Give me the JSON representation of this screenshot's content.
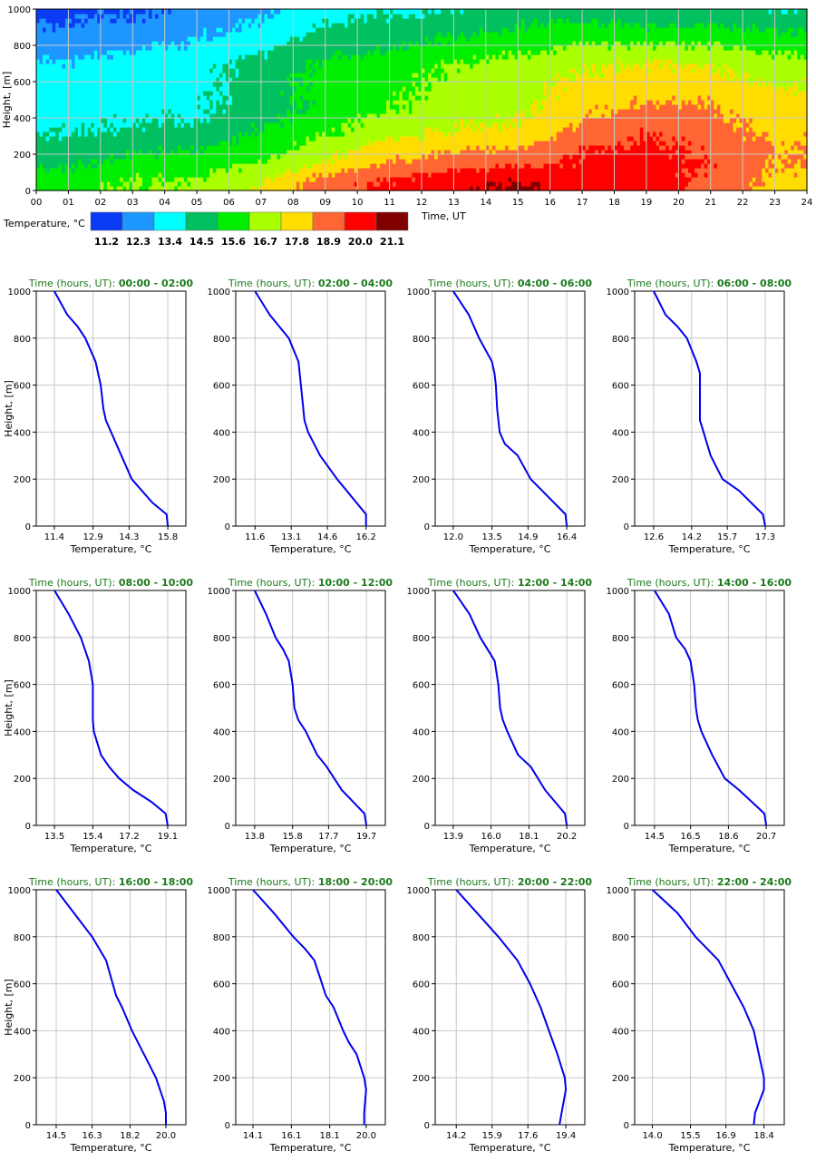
{
  "colors": {
    "profile_line": "#0000ee",
    "title_green": "#1a7a1a",
    "scale": [
      "#0a3cf5",
      "#1e96ff",
      "#00ffff",
      "#00c060",
      "#00ee00",
      "#aaff00",
      "#ffdd00",
      "#ff6633",
      "#ff0000",
      "#800000"
    ]
  },
  "chart_data": [
    {
      "type": "heatmap",
      "xlabel": "Time, UT",
      "ylabel": "Height, [m]",
      "x_ticks": [
        "00",
        "01",
        "02",
        "03",
        "04",
        "05",
        "06",
        "07",
        "08",
        "09",
        "10",
        "11",
        "12",
        "13",
        "14",
        "15",
        "16",
        "17",
        "18",
        "19",
        "20",
        "21",
        "22",
        "23",
        "24"
      ],
      "y_ticks": [
        "0",
        "200",
        "400",
        "600",
        "800",
        "1000"
      ],
      "xlim": [
        0,
        24
      ],
      "ylim": [
        0,
        1000
      ],
      "colorbar_label": "Temperature, °C",
      "colorbar_values": [
        "11.2",
        "12.3",
        "13.4",
        "14.5",
        "15.6",
        "16.7",
        "17.8",
        "18.9",
        "20.0",
        "21.1"
      ],
      "temperature_anchors": [
        {
          "time": 1,
          "heights": [
            0,
            50,
            150,
            300,
            450,
            600,
            700,
            800,
            1000
          ],
          "temps": [
            15.8,
            15.75,
            14.9,
            14.0,
            13.4,
            13.3,
            13.0,
            12.3,
            11.4
          ]
        },
        {
          "time": 3,
          "heights": [
            0,
            50,
            150,
            300,
            450,
            600,
            700,
            800,
            1000
          ],
          "temps": [
            16.2,
            16.2,
            15.4,
            14.3,
            13.65,
            13.6,
            13.4,
            12.6,
            11.6
          ]
        },
        {
          "time": 5,
          "heights": [
            0,
            50,
            150,
            300,
            400,
            600,
            700,
            800,
            1000
          ],
          "temps": [
            16.4,
            16.35,
            15.6,
            14.5,
            13.8,
            13.65,
            13.5,
            13.0,
            12.0
          ]
        },
        {
          "time": 7,
          "heights": [
            0,
            50,
            150,
            300,
            450,
            600,
            700,
            800,
            1000
          ],
          "temps": [
            17.3,
            17.2,
            16.2,
            15.2,
            14.55,
            14.55,
            14.4,
            13.6,
            12.6
          ]
        },
        {
          "time": 9,
          "heights": [
            0,
            50,
            150,
            300,
            450,
            600,
            700,
            800,
            1000
          ],
          "temps": [
            19.1,
            19.0,
            17.4,
            16.2,
            15.4,
            15.4,
            15.2,
            14.6,
            13.5
          ]
        },
        {
          "time": 11,
          "heights": [
            0,
            50,
            150,
            300,
            450,
            600,
            700,
            800,
            1000
          ],
          "temps": [
            19.7,
            19.6,
            18.4,
            17.1,
            16.1,
            15.8,
            15.6,
            14.9,
            13.8
          ]
        },
        {
          "time": 13,
          "heights": [
            0,
            50,
            150,
            300,
            450,
            600,
            700,
            800,
            1000
          ],
          "temps": [
            20.2,
            20.1,
            19.0,
            17.5,
            16.65,
            16.4,
            16.2,
            15.4,
            13.9
          ]
        },
        {
          "time": 15,
          "heights": [
            0,
            50,
            150,
            300,
            450,
            600,
            700,
            800,
            1000
          ],
          "temps": [
            20.7,
            20.6,
            19.2,
            17.7,
            16.9,
            16.7,
            16.5,
            15.7,
            14.5
          ]
        },
        {
          "time": 17,
          "heights": [
            0,
            50,
            200,
            400,
            550,
            700,
            800,
            1000
          ],
          "temps": [
            20.0,
            20.0,
            19.5,
            18.3,
            17.7,
            17.0,
            16.3,
            14.5
          ]
        },
        {
          "time": 19,
          "heights": [
            0,
            50,
            150,
            300,
            500,
            700,
            800,
            1000
          ],
          "temps": [
            19.9,
            19.9,
            20.0,
            19.5,
            18.3,
            17.3,
            16.2,
            14.1
          ]
        },
        {
          "time": 21,
          "heights": [
            0,
            50,
            150,
            300,
            500,
            700,
            800,
            1000
          ],
          "temps": [
            19.1,
            19.2,
            19.4,
            19.0,
            18.2,
            17.1,
            16.2,
            14.2
          ]
        },
        {
          "time": 23,
          "heights": [
            0,
            50,
            150,
            250,
            500,
            700,
            800,
            1000
          ],
          "temps": [
            18.0,
            18.05,
            18.4,
            18.3,
            17.6,
            16.6,
            15.7,
            14.0
          ]
        }
      ]
    },
    {
      "type": "line",
      "title_label": "Time (hours, UT):",
      "title_range": "00:00 - 02:00",
      "xlabel": "Temperature, °C",
      "ylabel": "Height, [m]",
      "xticks": [
        11.4,
        12.9,
        14.3,
        15.8
      ],
      "xlim": [
        10.7,
        16.5
      ],
      "ylim": [
        0,
        1000
      ],
      "x": [
        15.8,
        15.75,
        15.2,
        14.4,
        14.0,
        13.6,
        13.4,
        13.3,
        13.2,
        13.0,
        12.6,
        12.3,
        11.9,
        11.4
      ],
      "y": [
        0,
        50,
        100,
        200,
        300,
        400,
        450,
        500,
        600,
        700,
        800,
        850,
        900,
        1000
      ]
    },
    {
      "type": "line",
      "title_label": "Time (hours, UT):",
      "title_range": "02:00 - 04:00",
      "xlabel": "Temperature, °C",
      "ylabel": "Height, [m]",
      "xticks": [
        11.6,
        13.1,
        14.6,
        16.2
      ],
      "xlim": [
        10.8,
        17.0
      ],
      "ylim": [
        0,
        1000
      ],
      "x": [
        16.2,
        16.2,
        15.8,
        15.0,
        14.3,
        13.8,
        13.65,
        13.6,
        13.5,
        13.4,
        13.0,
        12.6,
        12.2,
        11.6
      ],
      "y": [
        0,
        50,
        100,
        200,
        300,
        400,
        450,
        500,
        600,
        700,
        800,
        850,
        900,
        1000
      ]
    },
    {
      "type": "line",
      "title_label": "Time (hours, UT):",
      "title_range": "04:00 - 06:00",
      "xlabel": "Temperature, °C",
      "ylabel": "Height, [m]",
      "xticks": [
        12.0,
        13.5,
        14.9,
        16.4
      ],
      "xlim": [
        11.3,
        17.1
      ],
      "ylim": [
        0,
        1000
      ],
      "x": [
        16.4,
        16.35,
        15.9,
        15.0,
        14.5,
        14.0,
        13.8,
        13.7,
        13.65,
        13.6,
        13.5,
        13.0,
        12.6,
        12.0
      ],
      "y": [
        0,
        50,
        100,
        200,
        300,
        350,
        400,
        500,
        600,
        650,
        700,
        800,
        900,
        1000
      ]
    },
    {
      "type": "line",
      "title_label": "Time (hours, UT):",
      "title_range": "06:00 - 08:00",
      "xlabel": "Temperature, °C",
      "ylabel": "Height, [m]",
      "xticks": [
        12.6,
        14.2,
        15.7,
        17.3
      ],
      "xlim": [
        11.8,
        18.1
      ],
      "ylim": [
        0,
        1000
      ],
      "x": [
        17.3,
        17.2,
        16.2,
        15.5,
        15.0,
        14.7,
        14.55,
        14.55,
        14.55,
        14.4,
        14.0,
        13.6,
        13.1,
        12.6
      ],
      "y": [
        0,
        50,
        150,
        200,
        300,
        400,
        450,
        550,
        650,
        700,
        800,
        850,
        900,
        1000
      ]
    },
    {
      "type": "line",
      "title_label": "Time (hours, UT):",
      "title_range": "08:00 - 10:00",
      "xlabel": "Temperature, °C",
      "ylabel": "Height, [m]",
      "xticks": [
        13.5,
        15.4,
        17.2,
        19.1
      ],
      "xlim": [
        12.6,
        20.0
      ],
      "ylim": [
        0,
        1000
      ],
      "x": [
        19.1,
        19.0,
        18.3,
        17.4,
        16.7,
        16.2,
        15.8,
        15.45,
        15.4,
        15.4,
        15.4,
        15.2,
        14.8,
        14.2,
        13.5
      ],
      "y": [
        0,
        50,
        100,
        150,
        200,
        250,
        300,
        400,
        450,
        500,
        600,
        700,
        800,
        900,
        1000
      ]
    },
    {
      "type": "line",
      "title_label": "Time (hours, UT):",
      "title_range": "10:00 - 12:00",
      "xlabel": "Temperature, °C",
      "ylabel": "Height, [m]",
      "xticks": [
        13.8,
        15.8,
        17.7,
        19.7
      ],
      "xlim": [
        12.8,
        20.7
      ],
      "ylim": [
        0,
        1000
      ],
      "x": [
        19.7,
        19.6,
        18.4,
        17.6,
        17.1,
        16.5,
        16.1,
        15.9,
        15.8,
        15.6,
        15.3,
        14.9,
        14.4,
        13.8
      ],
      "y": [
        0,
        50,
        150,
        250,
        300,
        400,
        450,
        500,
        600,
        700,
        750,
        800,
        900,
        1000
      ]
    },
    {
      "type": "line",
      "title_label": "Time (hours, UT):",
      "title_range": "12:00 - 14:00",
      "xlabel": "Temperature, °C",
      "ylabel": "Height, [m]",
      "xticks": [
        13.9,
        16.0,
        18.1,
        20.2
      ],
      "xlim": [
        12.9,
        21.2
      ],
      "ylim": [
        0,
        1000
      ],
      "x": [
        20.2,
        20.1,
        19.0,
        18.2,
        17.5,
        16.9,
        16.65,
        16.5,
        16.4,
        16.2,
        15.8,
        15.4,
        14.8,
        13.9
      ],
      "y": [
        0,
        50,
        150,
        250,
        300,
        400,
        450,
        500,
        600,
        700,
        750,
        800,
        900,
        1000
      ]
    },
    {
      "type": "line",
      "title_label": "Time (hours, UT):",
      "title_range": "14:00 - 16:00",
      "xlabel": "Temperature, °C",
      "ylabel": "Height, [m]",
      "xticks": [
        14.5,
        16.5,
        18.6,
        20.7
      ],
      "xlim": [
        13.4,
        21.7
      ],
      "ylim": [
        0,
        1000
      ],
      "x": [
        20.7,
        20.6,
        19.2,
        18.4,
        17.7,
        17.1,
        16.9,
        16.8,
        16.7,
        16.5,
        16.2,
        15.7,
        15.3,
        14.5
      ],
      "y": [
        0,
        50,
        150,
        200,
        300,
        400,
        450,
        500,
        600,
        700,
        750,
        800,
        900,
        1000
      ]
    },
    {
      "type": "line",
      "title_label": "Time (hours, UT):",
      "title_range": "16:00 - 18:00",
      "xlabel": "Temperature, °C",
      "ylabel": "Height, [m]",
      "xticks": [
        14.5,
        16.3,
        18.2,
        20.0
      ],
      "xlim": [
        13.5,
        21.0
      ],
      "ylim": [
        0,
        1000
      ],
      "x": [
        20.0,
        20.0,
        19.9,
        19.5,
        18.9,
        18.3,
        17.8,
        17.5,
        17.0,
        16.3,
        15.4,
        14.5
      ],
      "y": [
        0,
        50,
        100,
        200,
        300,
        400,
        500,
        550,
        700,
        800,
        900,
        1000
      ]
    },
    {
      "type": "line",
      "title_label": "Time (hours, UT):",
      "title_range": "18:00 - 20:00",
      "xlabel": "Temperature, °C",
      "ylabel": "Height, [m]",
      "xticks": [
        14.1,
        16.1,
        18.1,
        20.0
      ],
      "xlim": [
        13.2,
        21.0
      ],
      "ylim": [
        0,
        1000
      ],
      "x": [
        19.9,
        19.9,
        20.0,
        19.9,
        19.5,
        19.1,
        18.8,
        18.3,
        17.9,
        17.3,
        16.8,
        16.2,
        15.2,
        14.1
      ],
      "y": [
        0,
        50,
        150,
        200,
        300,
        350,
        400,
        500,
        550,
        700,
        750,
        800,
        900,
        1000
      ]
    },
    {
      "type": "line",
      "title_label": "Time (hours, UT):",
      "title_range": "20:00 - 22:00",
      "xlabel": "Temperature, °C",
      "ylabel": "Height, [m]",
      "xticks": [
        14.2,
        15.9,
        17.6,
        19.4
      ],
      "xlim": [
        13.2,
        20.3
      ],
      "ylim": [
        0,
        1000
      ],
      "x": [
        19.1,
        19.2,
        19.4,
        19.35,
        19.0,
        18.6,
        18.2,
        17.7,
        17.1,
        16.2,
        15.2,
        14.2
      ],
      "y": [
        0,
        50,
        150,
        200,
        300,
        400,
        500,
        600,
        700,
        800,
        900,
        1000
      ]
    },
    {
      "type": "line",
      "title_label": "Time (hours, UT):",
      "title_range": "22:00 - 24:00",
      "xlabel": "Temperature, °C",
      "ylabel": "Height, [m]",
      "xticks": [
        14.0,
        15.5,
        16.9,
        18.4
      ],
      "xlim": [
        13.3,
        19.2
      ],
      "ylim": [
        0,
        1000
      ],
      "x": [
        18.0,
        18.05,
        18.4,
        18.4,
        18.3,
        18.0,
        17.6,
        17.1,
        16.6,
        15.7,
        15.0,
        14.0
      ],
      "y": [
        0,
        50,
        150,
        200,
        250,
        400,
        500,
        600,
        700,
        800,
        900,
        1000
      ]
    }
  ]
}
